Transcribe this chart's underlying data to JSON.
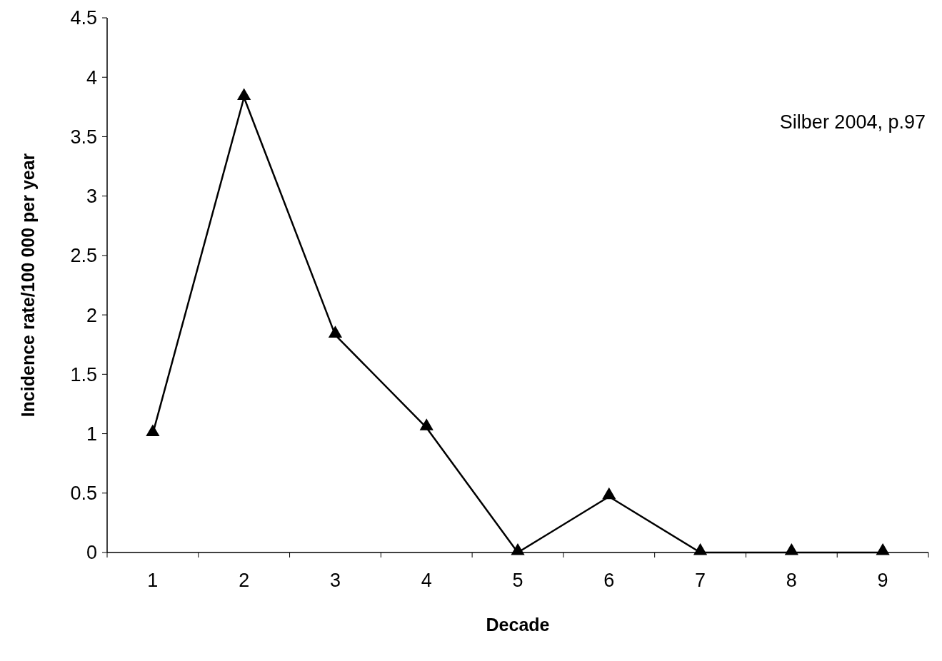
{
  "chart_data": {
    "type": "line",
    "xlabel": "Decade",
    "ylabel": "Incidence rate/100 000 per year",
    "categories": [
      "1",
      "2",
      "3",
      "4",
      "5",
      "6",
      "7",
      "8",
      "9"
    ],
    "series": [
      {
        "color": "#000000",
        "values": [
          1.0,
          3.83,
          1.83,
          1.05,
          0,
          0.47,
          0,
          0,
          0
        ]
      }
    ],
    "ylim": [
      0,
      4.5
    ],
    "yticks": [
      0,
      0.5,
      1,
      1.5,
      2,
      2.5,
      3,
      3.5,
      4,
      4.5
    ],
    "marker": "triangle",
    "line_style": "solid",
    "annotations": [
      "Silber 2004, p.97"
    ]
  }
}
